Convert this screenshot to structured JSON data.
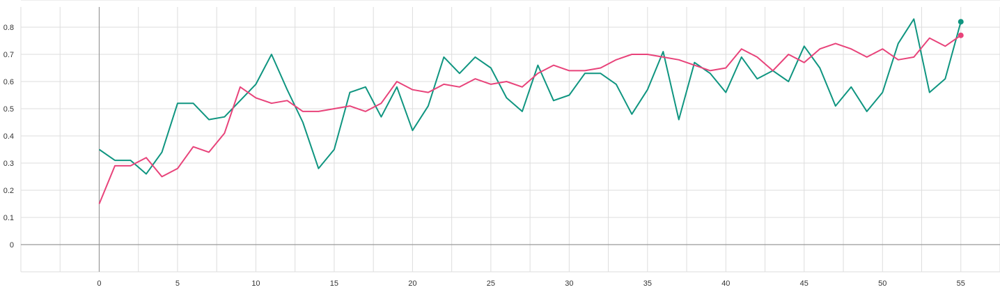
{
  "chart_data": {
    "type": "line",
    "title": "",
    "xlabel": "",
    "ylabel": "",
    "xlim": [
      -5,
      57.5
    ],
    "ylim": [
      -0.1,
      0.9
    ],
    "x_ticks": [
      0,
      5,
      10,
      15,
      20,
      25,
      30,
      35,
      40,
      45,
      50,
      55
    ],
    "y_ticks": [
      0,
      0.1,
      0.2,
      0.3,
      0.4,
      0.5,
      0.6,
      0.7,
      0.8
    ],
    "grid": true,
    "x": [
      0,
      1,
      2,
      3,
      4,
      5,
      6,
      7,
      8,
      9,
      10,
      11,
      12,
      13,
      14,
      15,
      16,
      17,
      18,
      19,
      20,
      21,
      22,
      23,
      24,
      25,
      26,
      27,
      28,
      29,
      30,
      31,
      32,
      33,
      34,
      35,
      36,
      37,
      38,
      39,
      40,
      41,
      42,
      43,
      44,
      45,
      46,
      47,
      48,
      49,
      50,
      51,
      52,
      53,
      54,
      55
    ],
    "series": [
      {
        "color": "#0f9580",
        "values": [
          0.35,
          0.31,
          0.31,
          0.26,
          0.34,
          0.52,
          0.52,
          0.46,
          0.47,
          0.53,
          0.59,
          0.7,
          0.57,
          0.45,
          0.28,
          0.35,
          0.56,
          0.58,
          0.47,
          0.58,
          0.42,
          0.51,
          0.69,
          0.63,
          0.69,
          0.65,
          0.54,
          0.49,
          0.66,
          0.53,
          0.55,
          0.63,
          0.63,
          0.59,
          0.48,
          0.57,
          0.71,
          0.46,
          0.67,
          0.63,
          0.56,
          0.69,
          0.61,
          0.64,
          0.6,
          0.73,
          0.65,
          0.51,
          0.58,
          0.49,
          0.56,
          0.74,
          0.83,
          0.56,
          0.61,
          0.82
        ]
      },
      {
        "color": "#e8437a",
        "values": [
          0.15,
          0.29,
          0.29,
          0.32,
          0.25,
          0.28,
          0.36,
          0.34,
          0.41,
          0.58,
          0.54,
          0.52,
          0.53,
          0.49,
          0.49,
          0.5,
          0.51,
          0.49,
          0.52,
          0.6,
          0.57,
          0.56,
          0.59,
          0.58,
          0.61,
          0.59,
          0.6,
          0.58,
          0.63,
          0.66,
          0.64,
          0.64,
          0.65,
          0.68,
          0.7,
          0.7,
          0.69,
          0.68,
          0.66,
          0.64,
          0.65,
          0.72,
          0.69,
          0.64,
          0.7,
          0.67,
          0.72,
          0.74,
          0.72,
          0.69,
          0.72,
          0.68,
          0.69,
          0.76,
          0.73,
          0.77
        ]
      }
    ]
  }
}
